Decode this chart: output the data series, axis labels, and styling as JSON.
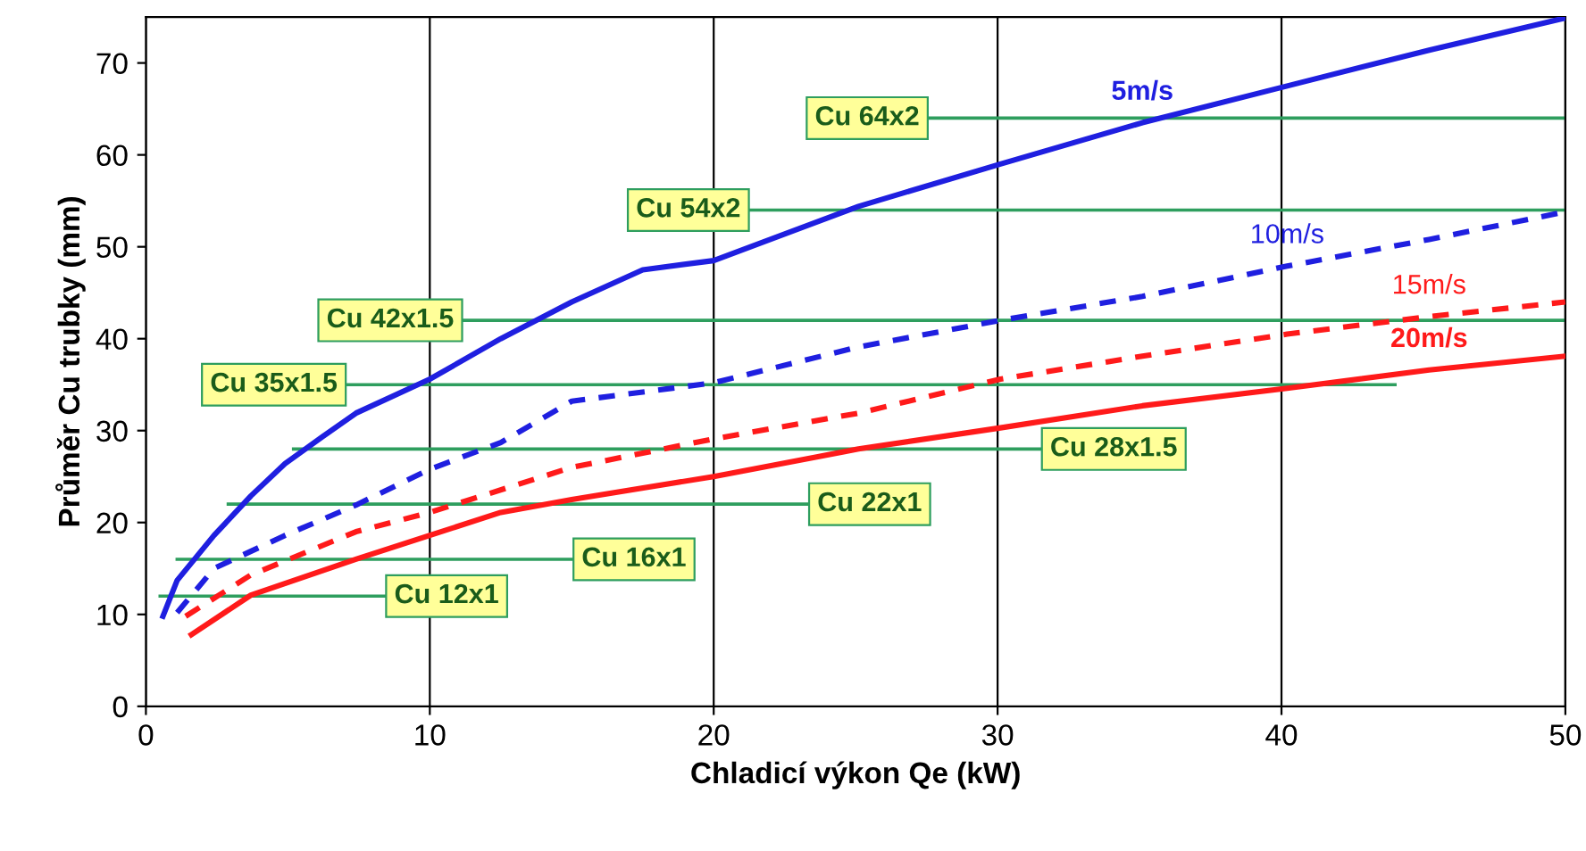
{
  "chart_data": {
    "type": "line",
    "xlabel": "Chladicí výkon Qe (kW)",
    "ylabel": "Průměr Cu trubky (mm)",
    "xlim": [
      0,
      50
    ],
    "ylim": [
      0,
      75
    ],
    "xticks": [
      0,
      10,
      20,
      30,
      40,
      50
    ],
    "yticks": [
      0,
      10,
      20,
      30,
      40,
      50,
      60,
      70
    ],
    "grid": "x",
    "marker": "none",
    "series": [
      {
        "color": "#1f1fe0",
        "line_style": "solid",
        "x": [
          0.6,
          1.1,
          2.4,
          3.7,
          4.9,
          6.2,
          7.4,
          10,
          12.5,
          15,
          17.5,
          20,
          25.1,
          30.1,
          35.1,
          40.2,
          45.2,
          50
        ],
        "values": [
          9.8,
          13.7,
          18.6,
          22.9,
          26.4,
          29.3,
          31.9,
          35.6,
          40,
          44,
          47.5,
          48.5,
          54.4,
          59,
          63.5,
          67.5,
          71.4,
          74.9
        ]
      },
      {
        "color": "#1f1fe0",
        "line_style": "dashed",
        "x": [
          1.1,
          2.4,
          4.9,
          7.4,
          10,
          12.5,
          15,
          20,
          25.1,
          30.1,
          35.1,
          40.2,
          45.2,
          50
        ],
        "values": [
          10.2,
          15,
          18.6,
          21.9,
          25.8,
          28.7,
          33.2,
          35.2,
          39.1,
          42,
          44.6,
          47.9,
          50.8,
          53.8
        ]
      },
      {
        "color": "#ff1a1a",
        "line_style": "dashed",
        "x": [
          1.4,
          3.7,
          7.4,
          10,
          15,
          20,
          25.1,
          30.1,
          35.1,
          40.2,
          45.2,
          50
        ],
        "values": [
          9.8,
          14.3,
          19,
          21.1,
          26,
          29.1,
          31.9,
          35.6,
          38.1,
          40.5,
          42.4,
          44
        ]
      },
      {
        "color": "#ff1a1a",
        "line_style": "solid",
        "x": [
          1.6,
          3.7,
          7.4,
          10,
          12.5,
          15,
          20,
          25.1,
          30.1,
          35.1,
          40.2,
          45.2,
          50
        ],
        "values": [
          7.8,
          12.1,
          16,
          18.6,
          21.1,
          22.5,
          25,
          28,
          30.3,
          32.7,
          34.6,
          36.6,
          38.1
        ]
      },
      {
        "name": "Cu 12x1",
        "color": "#2e9e5e",
        "line_style": "solid",
        "x": [
          0.5,
          8.4
        ],
        "values": [
          12,
          12
        ]
      },
      {
        "name": "Cu 16x1",
        "color": "#2e9e5e",
        "line_style": "solid",
        "x": [
          1.1,
          15
        ],
        "values": [
          16,
          16
        ]
      },
      {
        "name": "Cu 22x1",
        "color": "#2e9e5e",
        "line_style": "solid",
        "x": [
          2.9,
          23.3
        ],
        "values": [
          22,
          22
        ]
      },
      {
        "name": "Cu 28x1.5",
        "color": "#2e9e5e",
        "line_style": "solid",
        "x": [
          5.2,
          31.5
        ],
        "values": [
          28,
          28
        ]
      },
      {
        "name": "Cu 35x1.5",
        "color": "#2e9e5e",
        "line_style": "solid",
        "x": [
          44,
          7.1
        ],
        "values": [
          35,
          35
        ]
      },
      {
        "name": "Cu 42x1.5",
        "color": "#2e9e5e",
        "line_style": "solid",
        "x": [
          50,
          11.2
        ],
        "values": [
          42,
          42
        ]
      },
      {
        "name": "Cu 54x2",
        "color": "#2e9e5e",
        "line_style": "solid",
        "x": [
          50,
          21.3
        ],
        "values": [
          54,
          54
        ]
      },
      {
        "name": "Cu 64x2",
        "color": "#2e9e5e",
        "line_style": "solid",
        "x": [
          50,
          27.6
        ],
        "values": [
          64,
          64
        ]
      }
    ],
    "annotations": [
      {
        "text": "5m/s",
        "x": 35.1,
        "y": 63.5
      },
      {
        "text": "10m/s",
        "x": 40.2,
        "y": 47.9
      },
      {
        "text": "15m/s",
        "x": 45.2,
        "y": 42.4
      },
      {
        "text": "20m/s",
        "x": 45.2,
        "y": 36.6
      }
    ]
  }
}
